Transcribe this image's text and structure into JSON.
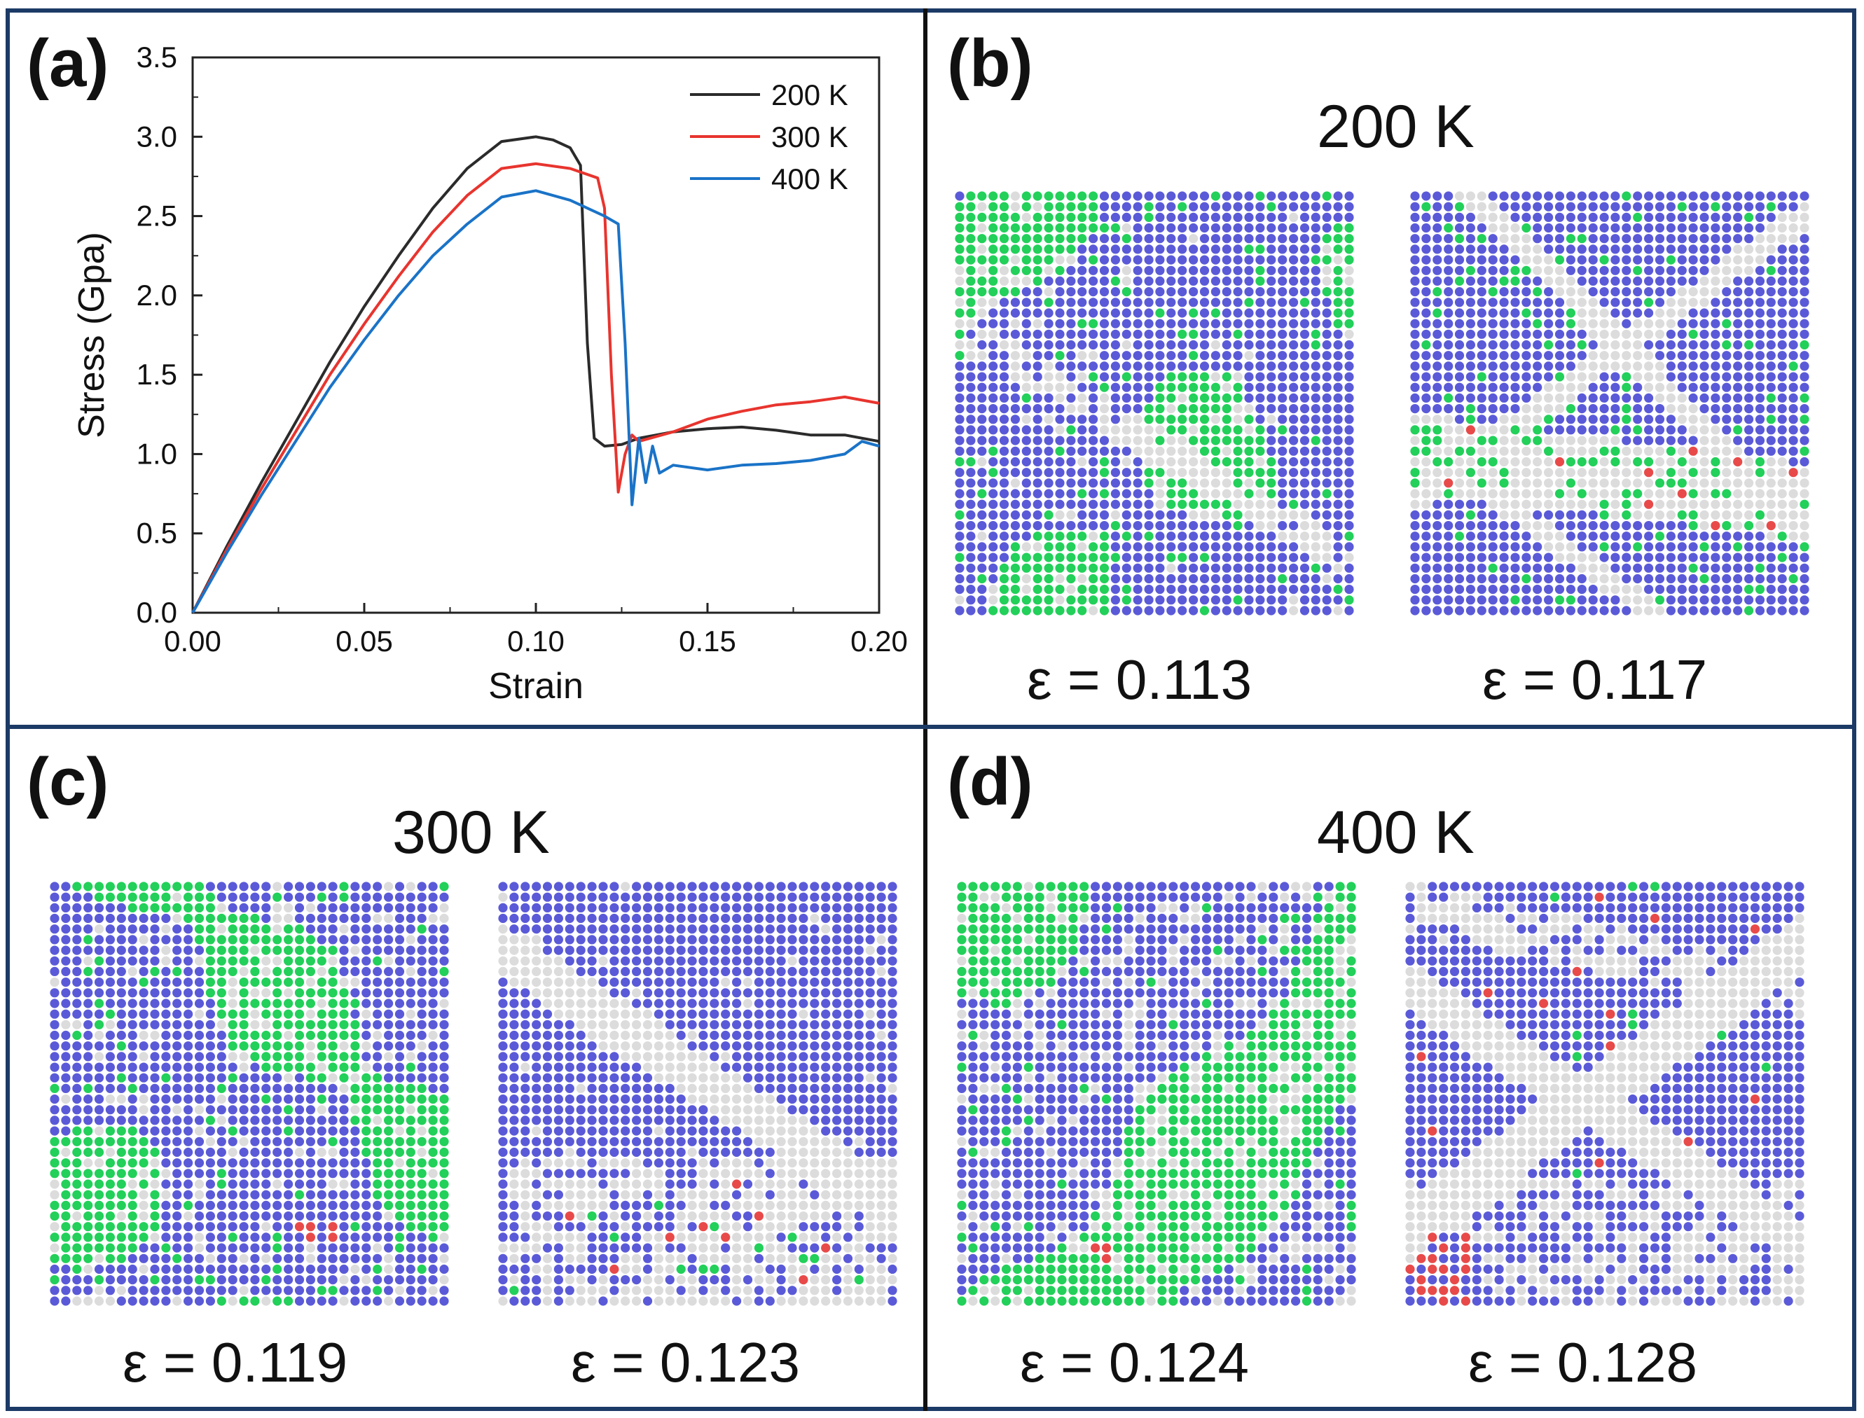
{
  "panels": {
    "a": {
      "label": "(a)"
    },
    "b": {
      "label": "(b)",
      "temperature": "200 K",
      "strain_left": "ε = 0.113",
      "strain_right": "ε = 0.117"
    },
    "c": {
      "label": "(c)",
      "temperature": "300 K",
      "strain_left": "ε = 0.119",
      "strain_right": "ε = 0.123"
    },
    "d": {
      "label": "(d)",
      "temperature": "400 K",
      "strain_left": "ε = 0.124",
      "strain_right": "ε = 0.128"
    }
  },
  "atom_colors": {
    "bcc": "#5a5ad8",
    "fcc": "#22d05a",
    "other": "#dcdcdc",
    "hcp": "#e84a4a"
  },
  "chart_data": {
    "type": "line",
    "title": "",
    "xlabel": "Strain",
    "ylabel": "Stress (Gpa)",
    "xlim": [
      0.0,
      0.2
    ],
    "ylim": [
      0.0,
      3.5
    ],
    "xticks": [
      "0.00",
      "0.05",
      "0.10",
      "0.15",
      "0.20"
    ],
    "yticks": [
      "0.0",
      "0.5",
      "1.0",
      "1.5",
      "2.0",
      "2.5",
      "3.0",
      "3.5"
    ],
    "legend_position": "top-right",
    "series": [
      {
        "name": "200 K",
        "color": "#2b2b2b",
        "points": [
          [
            0,
            0
          ],
          [
            0.01,
            0.42
          ],
          [
            0.02,
            0.82
          ],
          [
            0.03,
            1.2
          ],
          [
            0.04,
            1.58
          ],
          [
            0.05,
            1.93
          ],
          [
            0.06,
            2.25
          ],
          [
            0.07,
            2.55
          ],
          [
            0.08,
            2.8
          ],
          [
            0.09,
            2.97
          ],
          [
            0.1,
            3.0
          ],
          [
            0.105,
            2.98
          ],
          [
            0.11,
            2.93
          ],
          [
            0.113,
            2.82
          ],
          [
            0.115,
            1.7
          ],
          [
            0.117,
            1.1
          ],
          [
            0.12,
            1.05
          ],
          [
            0.125,
            1.06
          ],
          [
            0.13,
            1.1
          ],
          [
            0.14,
            1.14
          ],
          [
            0.15,
            1.16
          ],
          [
            0.16,
            1.17
          ],
          [
            0.17,
            1.15
          ],
          [
            0.18,
            1.12
          ],
          [
            0.19,
            1.12
          ],
          [
            0.2,
            1.08
          ]
        ]
      },
      {
        "name": "300 K",
        "color": "#e8342e",
        "points": [
          [
            0,
            0
          ],
          [
            0.01,
            0.4
          ],
          [
            0.02,
            0.78
          ],
          [
            0.03,
            1.14
          ],
          [
            0.04,
            1.5
          ],
          [
            0.05,
            1.82
          ],
          [
            0.06,
            2.12
          ],
          [
            0.07,
            2.4
          ],
          [
            0.08,
            2.63
          ],
          [
            0.09,
            2.8
          ],
          [
            0.1,
            2.83
          ],
          [
            0.11,
            2.8
          ],
          [
            0.118,
            2.74
          ],
          [
            0.12,
            2.55
          ],
          [
            0.122,
            1.5
          ],
          [
            0.124,
            0.76
          ],
          [
            0.126,
            1.0
          ],
          [
            0.128,
            1.12
          ],
          [
            0.13,
            1.08
          ],
          [
            0.14,
            1.14
          ],
          [
            0.15,
            1.22
          ],
          [
            0.16,
            1.27
          ],
          [
            0.17,
            1.31
          ],
          [
            0.18,
            1.33
          ],
          [
            0.19,
            1.36
          ],
          [
            0.2,
            1.32
          ]
        ]
      },
      {
        "name": "400 K",
        "color": "#1a73c7",
        "points": [
          [
            0,
            0
          ],
          [
            0.01,
            0.38
          ],
          [
            0.02,
            0.74
          ],
          [
            0.03,
            1.08
          ],
          [
            0.04,
            1.42
          ],
          [
            0.05,
            1.72
          ],
          [
            0.06,
            2.0
          ],
          [
            0.07,
            2.25
          ],
          [
            0.08,
            2.45
          ],
          [
            0.09,
            2.62
          ],
          [
            0.1,
            2.66
          ],
          [
            0.11,
            2.6
          ],
          [
            0.12,
            2.5
          ],
          [
            0.124,
            2.45
          ],
          [
            0.126,
            1.7
          ],
          [
            0.128,
            0.68
          ],
          [
            0.13,
            1.1
          ],
          [
            0.132,
            0.82
          ],
          [
            0.134,
            1.05
          ],
          [
            0.136,
            0.88
          ],
          [
            0.14,
            0.93
          ],
          [
            0.15,
            0.9
          ],
          [
            0.16,
            0.93
          ],
          [
            0.17,
            0.94
          ],
          [
            0.18,
            0.96
          ],
          [
            0.19,
            1.0
          ],
          [
            0.195,
            1.08
          ],
          [
            0.2,
            1.05
          ]
        ]
      }
    ]
  }
}
